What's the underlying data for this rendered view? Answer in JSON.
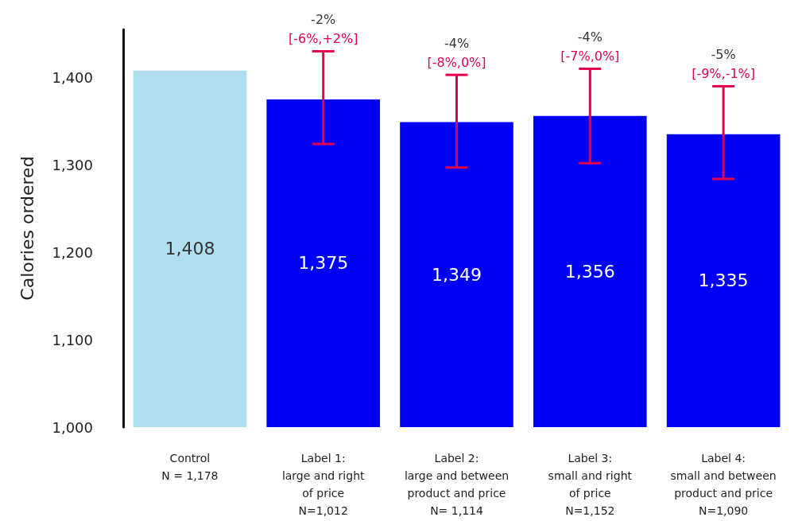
{
  "chart_data": {
    "type": "bar",
    "ylabel": "Calories ordered",
    "categories": [
      "Control\nN = 1,178",
      "Label 1:\nlarge and right\nof price\nN=1,012",
      "Label 2:\nlarge and between\nproduct and price\nN= 1,114",
      "Label 3:\nsmall and right\nof price\nN=1,152",
      "Label 4:\nsmall and between\nproduct and price\nN=1,090"
    ],
    "values": [
      1408,
      1375,
      1349,
      1356,
      1335
    ],
    "colors": [
      "#b0dff0",
      "#0000f5",
      "#0000f5",
      "#0000f5",
      "#0000f5"
    ],
    "errors": [
      null,
      [
        1324,
        1430
      ],
      [
        1297,
        1403
      ],
      [
        1302,
        1410
      ],
      [
        1284,
        1390
      ]
    ],
    "value_labels": [
      "1,408",
      "1,375",
      "1,349",
      "1,356",
      "1,335"
    ],
    "annotations": [
      {
        "text": "-2%\n[-6%,+2%]",
        "x": "Label 1:\nlarge and right\nof price\nN=1,012",
        "y": 1430
      },
      {
        "text": "-4%\n[-8%,0%]",
        "x": "Label 2:\nlarge and between\nproduct and price\nN= 1,114",
        "y": 1403
      },
      {
        "text": "-4%\n[-7%,0%]",
        "x": "Label 3:\nsmall and right\nof price\nN=1,152",
        "y": 1410
      },
      {
        "text": "-5%\n[-9%,-1%]",
        "x": "Label 4:\nsmall and between\nproduct and price\nN=1,090",
        "y": 1390
      }
    ],
    "ylim": [
      1000,
      1455
    ],
    "yticks": [
      {
        "value": 1000,
        "label": "1,000"
      },
      {
        "value": 1100,
        "label": "1,100"
      },
      {
        "value": 1200,
        "label": "1,200"
      },
      {
        "value": 1300,
        "label": "1,300"
      },
      {
        "value": 1400,
        "label": "1,400"
      }
    ],
    "grid": false
  }
}
